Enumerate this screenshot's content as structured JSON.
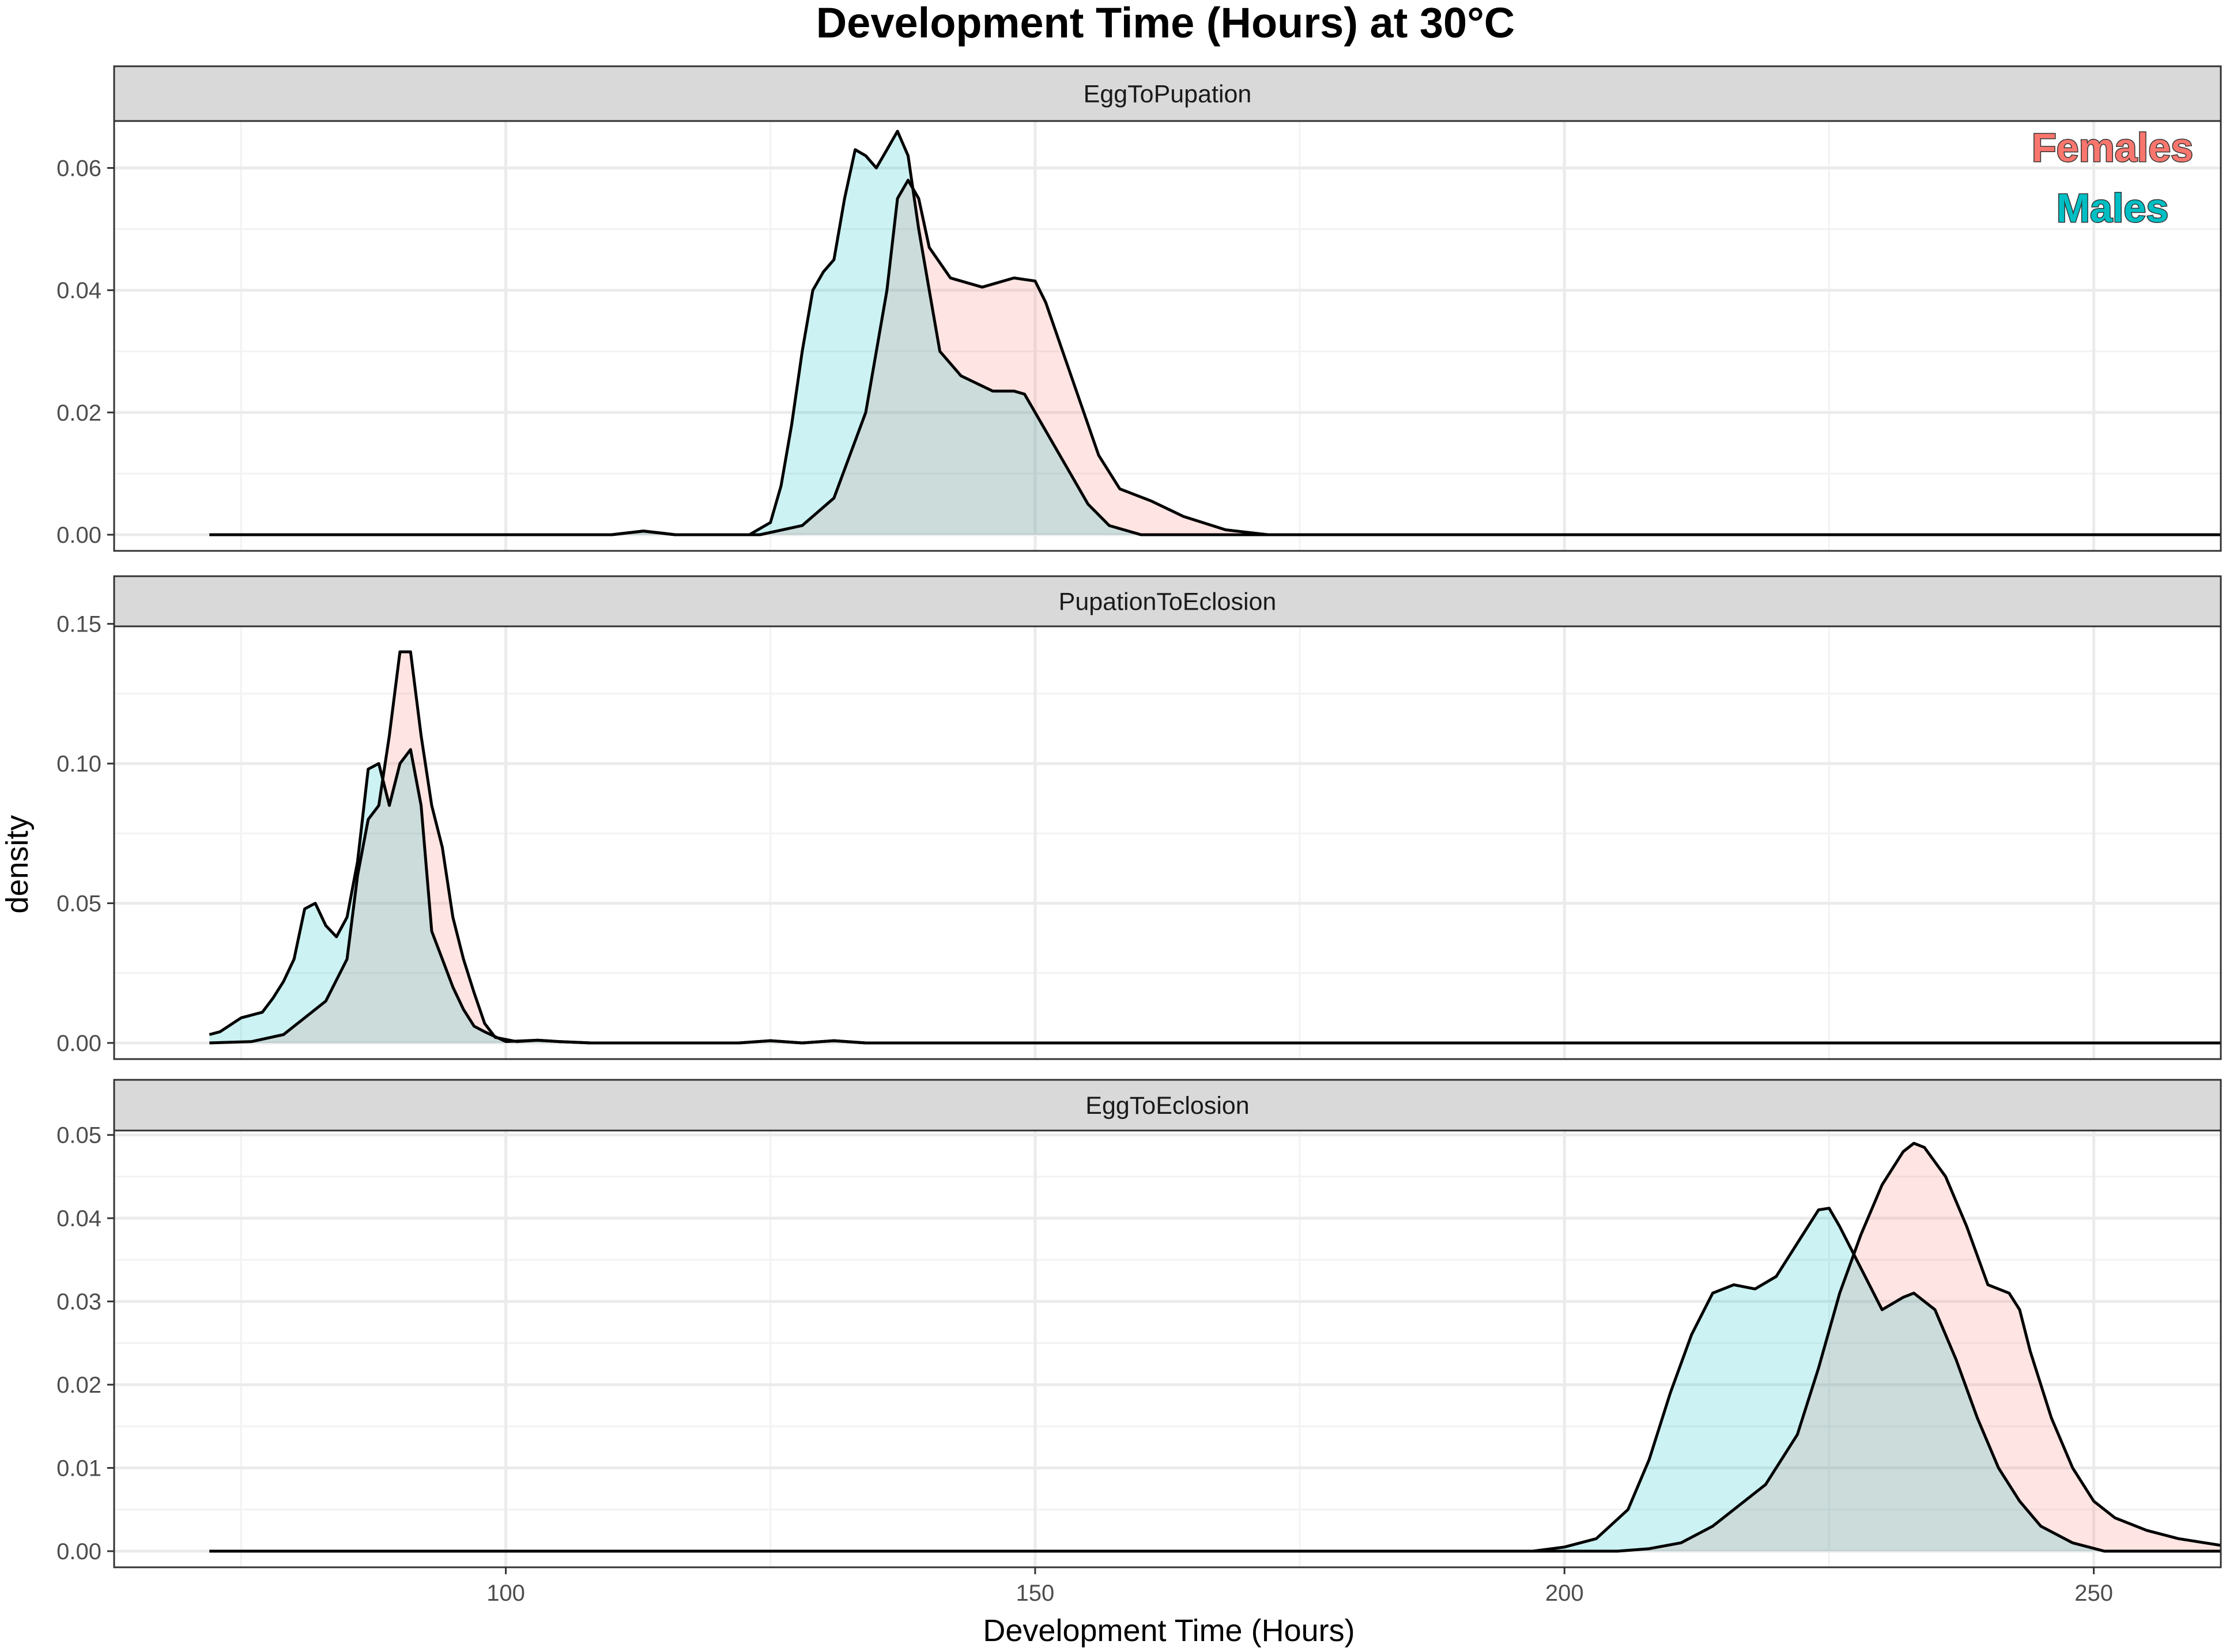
{
  "chart_data": {
    "type": "area",
    "title": "Development Time (Hours) at 30°C",
    "xlabel": "Development Time (Hours)",
    "ylabel": "density",
    "xlim": [
      63,
      262
    ],
    "x_ticks": [
      100,
      150,
      200,
      250
    ],
    "grid": true,
    "legend": {
      "placement": "top-right",
      "entries": [
        {
          "name": "Females",
          "color": "#f8766d"
        },
        {
          "name": "Males",
          "color": "#00bfc4"
        }
      ]
    },
    "fill_colors": {
      "Females": "#fcdde0",
      "Males": "#c9eff0",
      "overlap": "#c9dcdb"
    },
    "panels": [
      {
        "title": "EggToPupation",
        "ylim": [
          0,
          0.069
        ],
        "y_ticks": [
          0.0,
          0.02,
          0.04,
          0.06
        ],
        "y_tick_labels": [
          "0.00",
          "0.02",
          "0.04",
          "0.06"
        ],
        "series": [
          {
            "name": "Females",
            "points": [
              [
                72,
                0
              ],
              [
                110,
                0
              ],
              [
                113,
                0.0006
              ],
              [
                116,
                0
              ],
              [
                124,
                0
              ],
              [
                128,
                0.0015
              ],
              [
                131,
                0.006
              ],
              [
                134,
                0.02
              ],
              [
                136,
                0.04
              ],
              [
                137,
                0.055
              ],
              [
                138,
                0.058
              ],
              [
                139,
                0.055
              ],
              [
                140,
                0.047
              ],
              [
                142,
                0.042
              ],
              [
                145,
                0.0405
              ],
              [
                148,
                0.042
              ],
              [
                150,
                0.0415
              ],
              [
                151,
                0.038
              ],
              [
                153,
                0.028
              ],
              [
                156,
                0.013
              ],
              [
                158,
                0.0075
              ],
              [
                161,
                0.0055
              ],
              [
                164,
                0.003
              ],
              [
                168,
                0.0008
              ],
              [
                172,
                0
              ],
              [
                262,
                0
              ]
            ]
          },
          {
            "name": "Males",
            "points": [
              [
                72,
                0
              ],
              [
                110,
                0
              ],
              [
                113,
                0.0006
              ],
              [
                116,
                0
              ],
              [
                123,
                0
              ],
              [
                125,
                0.002
              ],
              [
                126,
                0.008
              ],
              [
                127,
                0.018
              ],
              [
                128,
                0.03
              ],
              [
                129,
                0.04
              ],
              [
                130,
                0.043
              ],
              [
                131,
                0.045
              ],
              [
                132,
                0.055
              ],
              [
                133,
                0.063
              ],
              [
                134,
                0.062
              ],
              [
                135,
                0.06
              ],
              [
                136,
                0.063
              ],
              [
                137,
                0.066
              ],
              [
                138,
                0.062
              ],
              [
                139,
                0.05
              ],
              [
                140,
                0.04
              ],
              [
                141,
                0.03
              ],
              [
                143,
                0.026
              ],
              [
                146,
                0.0235
              ],
              [
                148,
                0.0235
              ],
              [
                149,
                0.023
              ],
              [
                150,
                0.02
              ],
              [
                153,
                0.011
              ],
              [
                155,
                0.005
              ],
              [
                157,
                0.0015
              ],
              [
                160,
                0
              ],
              [
                262,
                0
              ]
            ]
          }
        ]
      },
      {
        "title": "PupationToEclosion",
        "ylim": [
          0,
          0.152
        ],
        "y_ticks": [
          0.0,
          0.05,
          0.1,
          0.15
        ],
        "y_tick_labels": [
          "0.00",
          "0.05",
          "0.10",
          "0.15"
        ],
        "series": [
          {
            "name": "Females",
            "points": [
              [
                72,
                0
              ],
              [
                76,
                0.0005
              ],
              [
                79,
                0.003
              ],
              [
                81,
                0.009
              ],
              [
                83,
                0.015
              ],
              [
                85,
                0.03
              ],
              [
                86,
                0.06
              ],
              [
                87,
                0.08
              ],
              [
                88,
                0.085
              ],
              [
                89,
                0.11
              ],
              [
                90,
                0.14
              ],
              [
                91,
                0.14
              ],
              [
                92,
                0.11
              ],
              [
                93,
                0.085
              ],
              [
                94,
                0.07
              ],
              [
                95,
                0.045
              ],
              [
                96,
                0.03
              ],
              [
                97,
                0.018
              ],
              [
                98,
                0.007
              ],
              [
                99,
                0.002
              ],
              [
                101,
                0.0005
              ],
              [
                103,
                0.001
              ],
              [
                105,
                0.0005
              ],
              [
                108,
                0
              ],
              [
                122,
                0
              ],
              [
                125,
                0.0008
              ],
              [
                128,
                0
              ],
              [
                131,
                0.0008
              ],
              [
                134,
                0
              ],
              [
                262,
                0
              ]
            ]
          },
          {
            "name": "Males",
            "points": [
              [
                72,
                0.003
              ],
              [
                73,
                0.004
              ],
              [
                75,
                0.009
              ],
              [
                77,
                0.011
              ],
              [
                78,
                0.016
              ],
              [
                79,
                0.022
              ],
              [
                80,
                0.03
              ],
              [
                81,
                0.048
              ],
              [
                82,
                0.05
              ],
              [
                83,
                0.042
              ],
              [
                84,
                0.038
              ],
              [
                85,
                0.045
              ],
              [
                86,
                0.065
              ],
              [
                87,
                0.098
              ],
              [
                88,
                0.1
              ],
              [
                89,
                0.085
              ],
              [
                90,
                0.1
              ],
              [
                91,
                0.105
              ],
              [
                92,
                0.085
              ],
              [
                93,
                0.04
              ],
              [
                94,
                0.03
              ],
              [
                95,
                0.02
              ],
              [
                96,
                0.012
              ],
              [
                97,
                0.006
              ],
              [
                98,
                0.004
              ],
              [
                100,
                0.0005
              ],
              [
                103,
                0.001
              ],
              [
                105,
                0.0005
              ],
              [
                108,
                0
              ],
              [
                122,
                0
              ],
              [
                125,
                0.0008
              ],
              [
                128,
                0
              ],
              [
                131,
                0.0008
              ],
              [
                134,
                0
              ],
              [
                262,
                0
              ]
            ]
          }
        ]
      },
      {
        "title": "EggToEclosion",
        "ylim": [
          0,
          0.0515
        ],
        "y_ticks": [
          0.0,
          0.01,
          0.02,
          0.03,
          0.04,
          0.05
        ],
        "y_tick_labels": [
          "0.00",
          "0.01",
          "0.02",
          "0.03",
          "0.04",
          "0.05"
        ],
        "series": [
          {
            "name": "Females",
            "points": [
              [
                72,
                0
              ],
              [
                205,
                0
              ],
              [
                208,
                0.0003
              ],
              [
                211,
                0.001
              ],
              [
                214,
                0.003
              ],
              [
                216,
                0.005
              ],
              [
                219,
                0.008
              ],
              [
                222,
                0.014
              ],
              [
                224,
                0.022
              ],
              [
                226,
                0.031
              ],
              [
                228,
                0.038
              ],
              [
                230,
                0.044
              ],
              [
                232,
                0.048
              ],
              [
                233,
                0.049
              ],
              [
                234,
                0.0485
              ],
              [
                236,
                0.045
              ],
              [
                238,
                0.039
              ],
              [
                240,
                0.032
              ],
              [
                242,
                0.031
              ],
              [
                243,
                0.029
              ],
              [
                244,
                0.024
              ],
              [
                246,
                0.016
              ],
              [
                248,
                0.01
              ],
              [
                250,
                0.006
              ],
              [
                252,
                0.004
              ],
              [
                255,
                0.0025
              ],
              [
                258,
                0.0015
              ],
              [
                262,
                0.0007
              ]
            ]
          },
          {
            "name": "Males",
            "points": [
              [
                72,
                0
              ],
              [
                197,
                0
              ],
              [
                200,
                0.0005
              ],
              [
                203,
                0.0015
              ],
              [
                206,
                0.005
              ],
              [
                208,
                0.011
              ],
              [
                210,
                0.019
              ],
              [
                212,
                0.026
              ],
              [
                214,
                0.031
              ],
              [
                216,
                0.032
              ],
              [
                218,
                0.0315
              ],
              [
                220,
                0.033
              ],
              [
                222,
                0.037
              ],
              [
                224,
                0.041
              ],
              [
                225,
                0.0412
              ],
              [
                226,
                0.039
              ],
              [
                228,
                0.034
              ],
              [
                230,
                0.029
              ],
              [
                232,
                0.0305
              ],
              [
                233,
                0.031
              ],
              [
                235,
                0.029
              ],
              [
                237,
                0.023
              ],
              [
                239,
                0.016
              ],
              [
                241,
                0.01
              ],
              [
                243,
                0.006
              ],
              [
                245,
                0.003
              ],
              [
                248,
                0.001
              ],
              [
                251,
                0
              ],
              [
                262,
                0
              ]
            ]
          }
        ]
      }
    ]
  }
}
